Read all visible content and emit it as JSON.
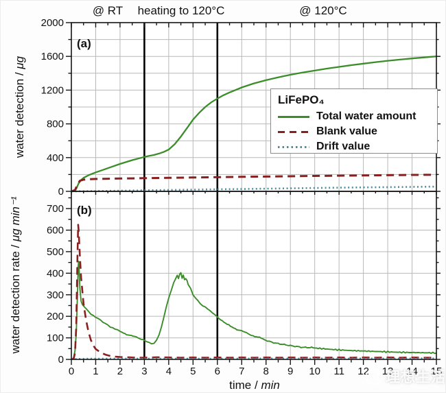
{
  "annotations": {
    "region1": "@ RT",
    "region2": "heating to 120°C",
    "region3": "@ 120°C"
  },
  "labels": {
    "panel_a": "(a)",
    "panel_b": "(b)",
    "y_a_prefix": "water detection / ",
    "y_a_unit": "μg",
    "y_b_prefix": "water detection rate / ",
    "y_b_unit": "μg min⁻¹",
    "x_prefix": "time / ",
    "x_unit": "min"
  },
  "legend": {
    "title": "LiFePO₄",
    "items": [
      {
        "label": "Total water amount",
        "color": "#3a8d28",
        "style": "solid"
      },
      {
        "label": "Blank value",
        "color": "#8a1f1f",
        "style": "dashed"
      },
      {
        "label": "Drift value",
        "color": "#4e8da0",
        "style": "dotted"
      }
    ]
  },
  "watermark": {
    "text": "理想生活",
    "icon": "swirl-logo"
  },
  "colors": {
    "grid": "#b8b8b8",
    "frame": "#151515",
    "region_line": "#000000",
    "plot_bg": "#ffffff"
  },
  "chart_data": [
    {
      "type": "line",
      "panel": "a",
      "ylabel": "water detection / μg",
      "ylim": [
        0,
        2000
      ],
      "yticks_labeled": [
        0,
        400,
        800,
        1200,
        1600,
        2000
      ],
      "y_minor_step": 200,
      "grid_y_step": 200,
      "xlim": [
        0,
        15
      ],
      "region_boundaries_min": [
        3,
        6
      ],
      "series": [
        {
          "name": "Total water amount",
          "color": "#3a8d28",
          "style": "solid",
          "noise": 0,
          "points": [
            [
              0,
              0
            ],
            [
              0.12,
              2
            ],
            [
              0.2,
              30
            ],
            [
              0.3,
              95
            ],
            [
              0.4,
              135
            ],
            [
              0.5,
              160
            ],
            [
              0.7,
              190
            ],
            [
              1,
              225
            ],
            [
              1.25,
              250
            ],
            [
              1.5,
              275
            ],
            [
              2,
              325
            ],
            [
              2.5,
              370
            ],
            [
              3,
              408
            ],
            [
              3.2,
              420
            ],
            [
              3.4,
              432
            ],
            [
              3.6,
              448
            ],
            [
              3.8,
              468
            ],
            [
              4,
              495
            ],
            [
              4.25,
              560
            ],
            [
              4.5,
              650
            ],
            [
              4.75,
              750
            ],
            [
              5,
              850
            ],
            [
              5.25,
              930
            ],
            [
              5.5,
              1000
            ],
            [
              5.75,
              1055
            ],
            [
              6,
              1100
            ],
            [
              6.25,
              1140
            ],
            [
              6.5,
              1172
            ],
            [
              7,
              1232
            ],
            [
              7.5,
              1280
            ],
            [
              8,
              1318
            ],
            [
              8.5,
              1352
            ],
            [
              9,
              1382
            ],
            [
              9.5,
              1408
            ],
            [
              10,
              1432
            ],
            [
              10.5,
              1455
            ],
            [
              11,
              1476
            ],
            [
              11.5,
              1496
            ],
            [
              12,
              1514
            ],
            [
              12.5,
              1532
            ],
            [
              13,
              1548
            ],
            [
              13.5,
              1562
            ],
            [
              14,
              1576
            ],
            [
              14.5,
              1588
            ],
            [
              15,
              1600
            ]
          ]
        },
        {
          "name": "Blank value",
          "color": "#8a1f1f",
          "style": "dashed",
          "noise": 0,
          "points": [
            [
              0,
              0
            ],
            [
              0.15,
              15
            ],
            [
              0.25,
              80
            ],
            [
              0.35,
              125
            ],
            [
              0.5,
              138
            ],
            [
              0.75,
              144
            ],
            [
              1,
              147
            ],
            [
              1.5,
              150
            ],
            [
              2,
              152
            ],
            [
              2.5,
              154
            ],
            [
              3,
              156
            ],
            [
              4,
              160
            ],
            [
              5,
              164
            ],
            [
              6,
              168
            ],
            [
              7,
              172
            ],
            [
              8,
              176
            ],
            [
              9,
              179
            ],
            [
              10,
              183
            ],
            [
              11,
              186
            ],
            [
              12,
              189
            ],
            [
              13,
              192
            ],
            [
              14,
              195
            ],
            [
              15,
              197
            ]
          ]
        },
        {
          "name": "Drift value",
          "color": "#4e8da0",
          "style": "dotted",
          "noise": 0,
          "points": [
            [
              0,
              0
            ],
            [
              0.5,
              2
            ],
            [
              1,
              4
            ],
            [
              2,
              8
            ],
            [
              3,
              12
            ],
            [
              4,
              16
            ],
            [
              5,
              20
            ],
            [
              6,
              24
            ],
            [
              7,
              28
            ],
            [
              8,
              32
            ],
            [
              9,
              36
            ],
            [
              10,
              40
            ],
            [
              11,
              44
            ],
            [
              12,
              47
            ],
            [
              13,
              50
            ],
            [
              14,
              53
            ],
            [
              15,
              56
            ]
          ]
        }
      ]
    },
    {
      "type": "line",
      "panel": "b",
      "ylabel": "water detection rate / μg min⁻¹",
      "ylim": [
        0,
        780
      ],
      "yticks_labeled": [
        0,
        100,
        200,
        300,
        400,
        500,
        600,
        700
      ],
      "y_minor_step": 50,
      "grid_y_step": 100,
      "xlim": [
        0,
        15
      ],
      "xlabel": "time / min",
      "xticks_labeled": [
        0,
        1,
        2,
        3,
        4,
        5,
        6,
        7,
        8,
        9,
        10,
        11,
        12,
        13,
        14,
        15
      ],
      "x_minor_step": 0.5,
      "region_boundaries_min": [
        3,
        6
      ],
      "series": [
        {
          "name": "Total water amount",
          "color": "#3a8d28",
          "style": "solid",
          "noise": 3.5,
          "points": [
            [
              0,
              0
            ],
            [
              0.05,
              2
            ],
            [
              0.1,
              10
            ],
            [
              0.15,
              40
            ],
            [
              0.2,
              120
            ],
            [
              0.25,
              300
            ],
            [
              0.28,
              430
            ],
            [
              0.3,
              455
            ],
            [
              0.32,
              420
            ],
            [
              0.35,
              330
            ],
            [
              0.4,
              270
            ],
            [
              0.45,
              255
            ],
            [
              0.5,
              248
            ],
            [
              0.6,
              235
            ],
            [
              0.7,
              222
            ],
            [
              0.8,
              210
            ],
            [
              0.9,
              205
            ],
            [
              1,
              198
            ],
            [
              1.1,
              190
            ],
            [
              1.2,
              180
            ],
            [
              1.3,
              172
            ],
            [
              1.4,
              165
            ],
            [
              1.5,
              160
            ],
            [
              1.6,
              152
            ],
            [
              1.7,
              148
            ],
            [
              1.8,
              140
            ],
            [
              1.9,
              135
            ],
            [
              2,
              130
            ],
            [
              2.2,
              120
            ],
            [
              2.4,
              112
            ],
            [
              2.6,
              105
            ],
            [
              2.8,
              98
            ],
            [
              3,
              90
            ],
            [
              3.1,
              82
            ],
            [
              3.2,
              75
            ],
            [
              3.3,
              72
            ],
            [
              3.4,
              75
            ],
            [
              3.5,
              90
            ],
            [
              3.6,
              115
            ],
            [
              3.7,
              150
            ],
            [
              3.8,
              195
            ],
            [
              3.9,
              240
            ],
            [
              4,
              285
            ],
            [
              4.1,
              320
            ],
            [
              4.2,
              355
            ],
            [
              4.3,
              380
            ],
            [
              4.35,
              390
            ],
            [
              4.4,
              375
            ],
            [
              4.45,
              395
            ],
            [
              4.5,
              400
            ],
            [
              4.55,
              380
            ],
            [
              4.6,
              390
            ],
            [
              4.65,
              370
            ],
            [
              4.7,
              375
            ],
            [
              4.75,
              365
            ],
            [
              4.8,
              350
            ],
            [
              4.9,
              330
            ],
            [
              5,
              300
            ],
            [
              5.1,
              285
            ],
            [
              5.2,
              270
            ],
            [
              5.3,
              258
            ],
            [
              5.4,
              250
            ],
            [
              5.5,
              245
            ],
            [
              5.6,
              235
            ],
            [
              5.7,
              225
            ],
            [
              5.8,
              215
            ],
            [
              5.9,
              205
            ],
            [
              6,
              197
            ],
            [
              6.2,
              180
            ],
            [
              6.4,
              162
            ],
            [
              6.6,
              150
            ],
            [
              6.8,
              140
            ],
            [
              7,
              132
            ],
            [
              7.2,
              122
            ],
            [
              7.4,
              113
            ],
            [
              7.6,
              105
            ],
            [
              7.8,
              98
            ],
            [
              8,
              88
            ],
            [
              8.25,
              80
            ],
            [
              8.5,
              74
            ],
            [
              8.75,
              68
            ],
            [
              9,
              63
            ],
            [
              9.25,
              60
            ],
            [
              9.5,
              57
            ],
            [
              9.75,
              55
            ],
            [
              10,
              53
            ],
            [
              10.5,
              48
            ],
            [
              11,
              44
            ],
            [
              11.5,
              41
            ],
            [
              12,
              39
            ],
            [
              12.5,
              37
            ],
            [
              13,
              35
            ],
            [
              13.5,
              33
            ],
            [
              14,
              32
            ],
            [
              14.5,
              31
            ],
            [
              15,
              30
            ]
          ]
        },
        {
          "name": "Blank value",
          "color": "#8a1f1f",
          "style": "dashed",
          "noise": 0,
          "points": [
            [
              0,
              0
            ],
            [
              0.1,
              5
            ],
            [
              0.15,
              30
            ],
            [
              0.2,
              150
            ],
            [
              0.25,
              480
            ],
            [
              0.28,
              625
            ],
            [
              0.3,
              600
            ],
            [
              0.35,
              480
            ],
            [
              0.4,
              380
            ],
            [
              0.5,
              260
            ],
            [
              0.6,
              185
            ],
            [
              0.7,
              130
            ],
            [
              0.8,
              90
            ],
            [
              0.9,
              65
            ],
            [
              1,
              48
            ],
            [
              1.2,
              32
            ],
            [
              1.4,
              22
            ],
            [
              1.6,
              16
            ],
            [
              1.8,
              13
            ],
            [
              2,
              11
            ],
            [
              2.5,
              9
            ],
            [
              3,
              8
            ],
            [
              3.5,
              10
            ],
            [
              4,
              9
            ],
            [
              4.5,
              8
            ],
            [
              5,
              9
            ],
            [
              5.5,
              8
            ],
            [
              6,
              9
            ],
            [
              6.5,
              8
            ],
            [
              7,
              9
            ],
            [
              7.5,
              8
            ],
            [
              8,
              9
            ],
            [
              8.5,
              8
            ],
            [
              9,
              9
            ],
            [
              9.5,
              8
            ],
            [
              10,
              9
            ],
            [
              10.5,
              8
            ],
            [
              11,
              9
            ],
            [
              11.5,
              8
            ],
            [
              12,
              9
            ],
            [
              12.5,
              8
            ],
            [
              13,
              9
            ],
            [
              13.5,
              8
            ],
            [
              14,
              9
            ],
            [
              14.5,
              8
            ],
            [
              15,
              8
            ]
          ]
        },
        {
          "name": "Drift value",
          "color": "#4e8da0",
          "style": "dotted",
          "noise": 0,
          "points": [
            [
              0,
              1
            ],
            [
              0.3,
              3
            ],
            [
              1,
              4
            ],
            [
              2,
              4
            ],
            [
              3,
              4
            ],
            [
              4,
              4
            ],
            [
              5,
              4
            ],
            [
              6,
              4
            ],
            [
              7,
              4
            ],
            [
              8,
              5
            ],
            [
              9,
              4
            ],
            [
              10,
              5
            ],
            [
              11,
              4
            ],
            [
              12,
              5
            ],
            [
              13,
              4
            ],
            [
              14,
              5
            ],
            [
              15,
              5
            ]
          ]
        }
      ]
    }
  ]
}
